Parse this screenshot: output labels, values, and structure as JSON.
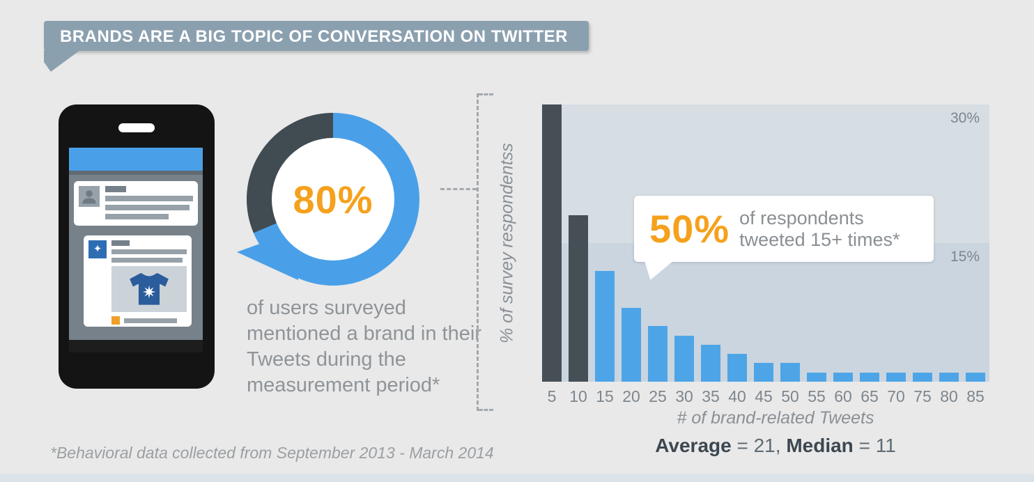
{
  "header": {
    "title": "BRANDS ARE A BIG TOPIC OF CONVERSATION ON TWITTER",
    "background": "#8ba0af"
  },
  "stat80": {
    "value": "80%",
    "caption": "of users surveyed mentioned a brand in their Tweets during the measurement period*",
    "donut_filled_color": "#4aa0e8",
    "donut_remainder_color": "#414b52",
    "value_color": "#f5a11d"
  },
  "callout": {
    "value": "50%",
    "line1": "of respondents",
    "line2": "tweeted 15+ times*"
  },
  "chart_data": {
    "type": "bar",
    "title": "",
    "categories": [
      5,
      10,
      15,
      20,
      25,
      30,
      35,
      40,
      45,
      50,
      55,
      60,
      65,
      70,
      75,
      80,
      85
    ],
    "values": [
      30,
      18,
      12,
      8,
      6,
      5,
      4,
      3,
      2,
      2,
      1,
      1,
      1,
      1,
      1,
      1,
      1
    ],
    "dark_categories": [
      5,
      10
    ],
    "ylabel": "% of survey respondentss",
    "xlabel": "# of brand-related Tweets",
    "yticks": [
      "30%",
      "15%"
    ],
    "ylim": [
      0,
      30
    ],
    "grid": false,
    "legend": false,
    "bar_color": "#4da5e8",
    "dark_bar_color": "#454f55",
    "band_upper_color": "#d6dde3",
    "band_lower_color": "#cbd5df"
  },
  "summary": {
    "parts": [
      "Average",
      " = 21, ",
      "Median",
      " = 11"
    ]
  },
  "footnote": "*Behavioral data collected from September 2013 - March 2014"
}
